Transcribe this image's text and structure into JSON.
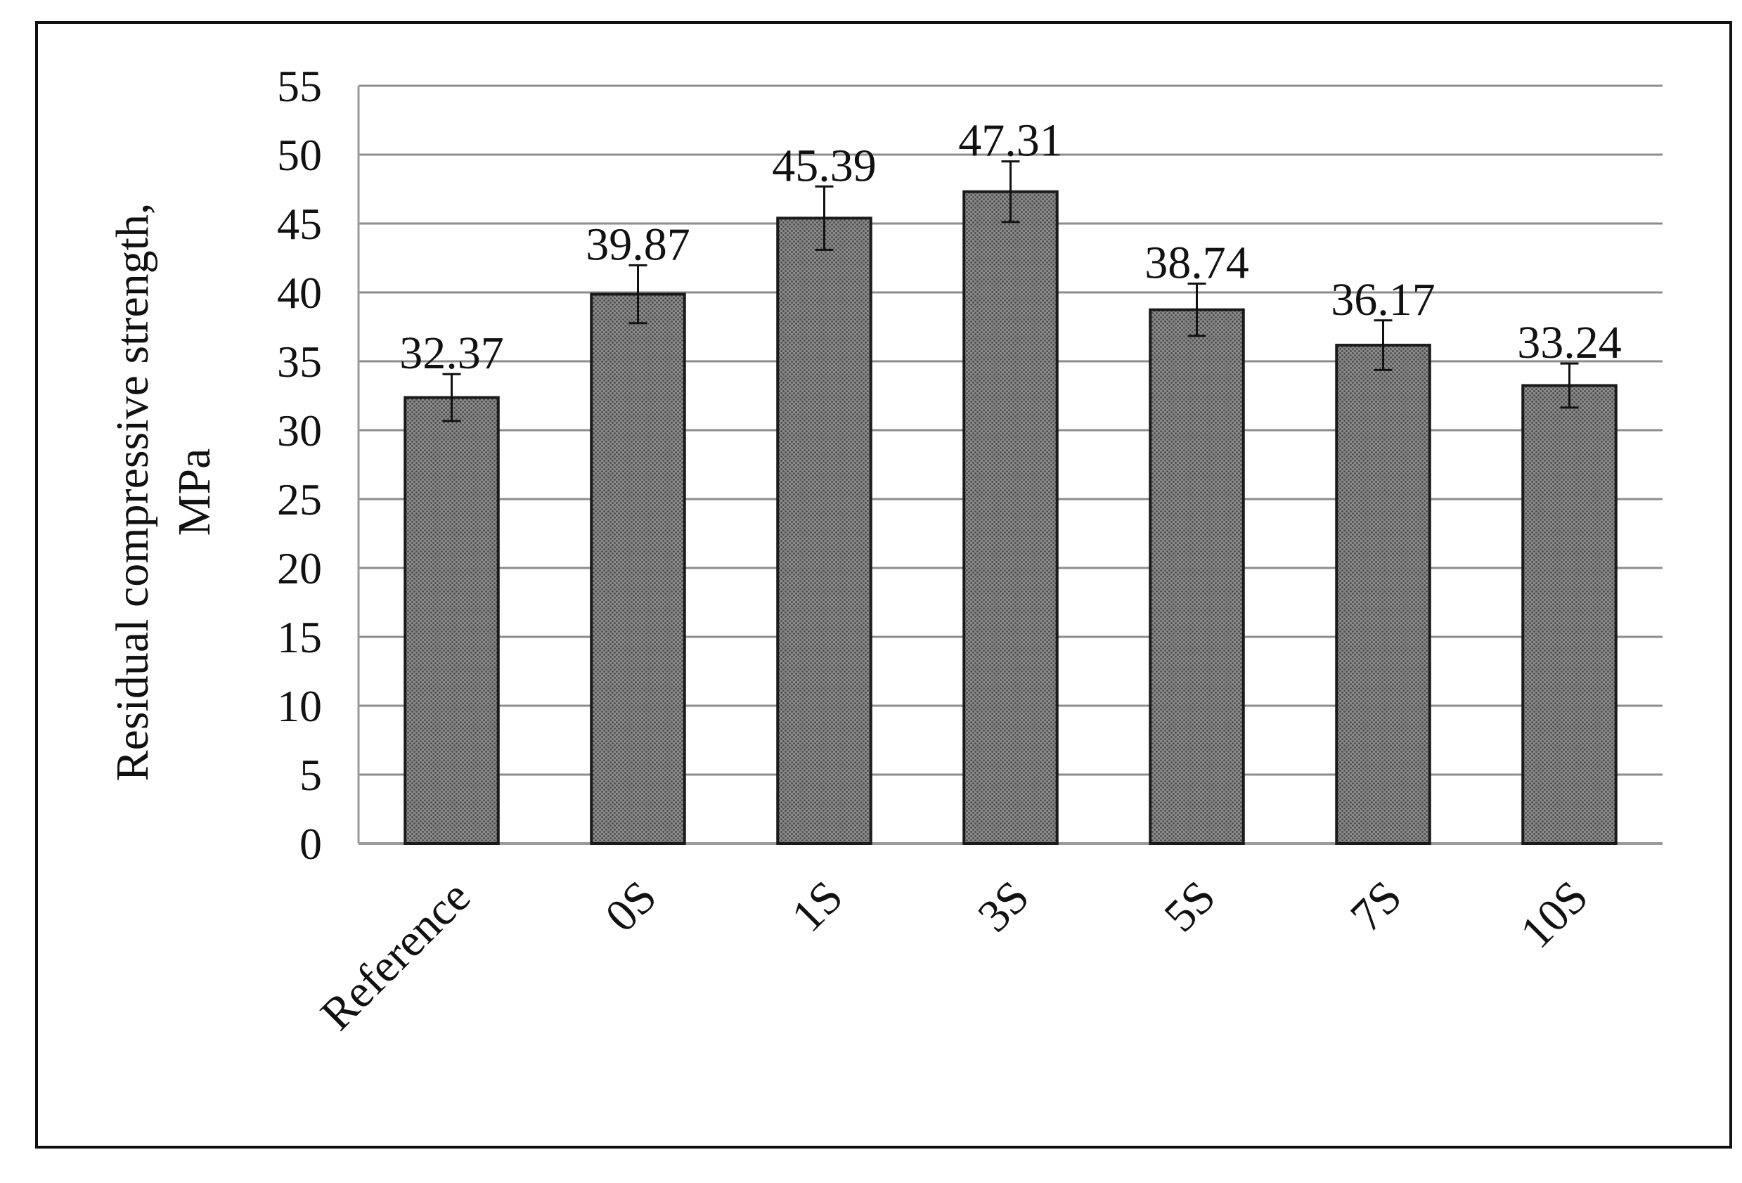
{
  "chart_data": {
    "type": "bar",
    "title": "",
    "xlabel": "",
    "ylabel_lines": [
      "Residual compressive strength,",
      "MPa"
    ],
    "categories": [
      "Reference",
      "0S",
      "1S",
      "3S",
      "5S",
      "7S",
      "10S"
    ],
    "values": [
      32.37,
      39.87,
      45.39,
      47.31,
      38.74,
      36.17,
      33.24
    ],
    "value_labels": [
      "32.37",
      "39.87",
      "45.39",
      "47.31",
      "38.74",
      "36.17",
      "33.24"
    ],
    "error": [
      1.7,
      2.1,
      2.3,
      2.2,
      1.9,
      1.8,
      1.6
    ],
    "ylim": [
      0,
      55
    ],
    "ytick_step": 5,
    "grid": "horizontal",
    "bar_color": "#7f7f7f",
    "bar_pattern": "fine-dot",
    "bar_edge_color": "#1a1a1a",
    "grid_color": "#8c8c8c"
  }
}
